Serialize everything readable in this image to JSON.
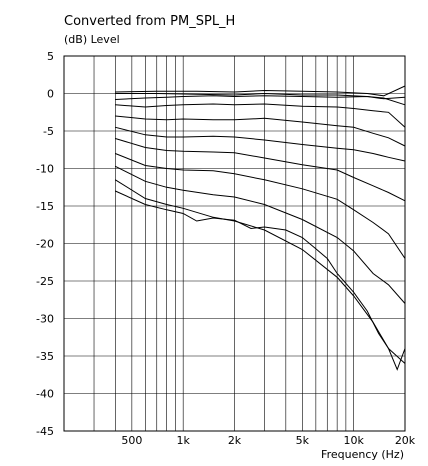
{
  "chart_data": {
    "type": "line",
    "title": "Converted from PM_SPL_H",
    "ylabel": "(dB)  Level",
    "xlabel": "Frequency  (Hz)",
    "x_scale": "log",
    "xlim": [
      200,
      20000
    ],
    "ylim": [
      -45,
      5
    ],
    "grid": true,
    "legend": "none",
    "line_color": "#000000",
    "y_ticks": [
      5,
      0,
      -5,
      -10,
      -15,
      -20,
      -25,
      -30,
      -35,
      -40,
      -45
    ],
    "x_ticks": [
      {
        "value": 500,
        "label": "500"
      },
      {
        "value": 1000,
        "label": "1k"
      },
      {
        "value": 2000,
        "label": "2k"
      },
      {
        "value": 5000,
        "label": "5k"
      },
      {
        "value": 10000,
        "label": "10k"
      },
      {
        "value": 20000,
        "label": "20k"
      }
    ],
    "x_minor": [
      200,
      300,
      400,
      500,
      600,
      700,
      800,
      900,
      1000,
      2000,
      3000,
      4000,
      5000,
      6000,
      7000,
      8000,
      9000,
      10000,
      20000
    ],
    "series": [
      {
        "x": [
          400,
          700,
          1200,
          2000,
          3000,
          5000,
          8000,
          12000,
          15000,
          20000
        ],
        "y": [
          0.2,
          0.3,
          0.3,
          0.2,
          0.4,
          0.3,
          0.2,
          0.0,
          -0.3,
          1.0
        ]
      },
      {
        "x": [
          400,
          700,
          1200,
          2000,
          3000,
          5000,
          8000,
          12000,
          15000,
          20000
        ],
        "y": [
          0.0,
          0.0,
          -0.1,
          -0.2,
          0.0,
          -0.2,
          -0.2,
          -0.4,
          -0.7,
          -0.5
        ]
      },
      {
        "x": [
          400,
          600,
          800,
          1000,
          1500,
          2000,
          3000,
          5000,
          8000,
          12000,
          15000,
          20000
        ],
        "y": [
          -0.8,
          -0.6,
          -0.5,
          -0.4,
          -0.3,
          -0.4,
          -0.3,
          -0.4,
          -0.5,
          -0.4,
          -0.6,
          -1.5
        ]
      },
      {
        "x": [
          400,
          600,
          800,
          1000,
          1500,
          2000,
          3000,
          5000,
          8000,
          10000,
          13000,
          16000,
          20000
        ],
        "y": [
          -1.5,
          -1.8,
          -1.6,
          -1.5,
          -1.4,
          -1.5,
          -1.4,
          -1.7,
          -1.8,
          -2.0,
          -2.3,
          -2.5,
          -4.5
        ]
      },
      {
        "x": [
          400,
          600,
          800,
          1000,
          1500,
          2000,
          3000,
          5000,
          8000,
          10000,
          13000,
          16000,
          20000
        ],
        "y": [
          -3.0,
          -3.4,
          -3.5,
          -3.4,
          -3.5,
          -3.5,
          -3.3,
          -3.8,
          -4.3,
          -4.5,
          -5.3,
          -5.9,
          -7.0
        ]
      },
      {
        "x": [
          400,
          600,
          800,
          1000,
          1500,
          2000,
          3000,
          5000,
          8000,
          10000,
          13000,
          16000,
          20000
        ],
        "y": [
          -4.5,
          -5.5,
          -5.8,
          -5.8,
          -5.7,
          -5.8,
          -6.2,
          -6.8,
          -7.3,
          -7.5,
          -8.0,
          -8.5,
          -9.0
        ]
      },
      {
        "x": [
          400,
          600,
          800,
          1000,
          1500,
          2000,
          3000,
          5000,
          8000,
          10000,
          13000,
          16000,
          20000
        ],
        "y": [
          -6.0,
          -7.2,
          -7.6,
          -7.7,
          -7.8,
          -7.9,
          -8.6,
          -9.5,
          -10.2,
          -11.2,
          -12.3,
          -13.2,
          -14.3
        ]
      },
      {
        "x": [
          400,
          600,
          800,
          1000,
          1500,
          2000,
          3000,
          5000,
          8000,
          10000,
          13000,
          16000,
          20000
        ],
        "y": [
          -8.0,
          -9.6,
          -10.0,
          -10.2,
          -10.3,
          -10.7,
          -11.5,
          -12.7,
          -14.1,
          -15.5,
          -17.2,
          -18.7,
          -22.0
        ]
      },
      {
        "x": [
          400,
          600,
          800,
          1000,
          1500,
          2000,
          3000,
          5000,
          8000,
          10000,
          13000,
          16000,
          20000
        ],
        "y": [
          -9.7,
          -11.7,
          -12.5,
          -12.9,
          -13.5,
          -13.8,
          -14.8,
          -16.8,
          -19.2,
          -21.0,
          -24.0,
          -25.5,
          -28.0
        ]
      },
      {
        "x": [
          400,
          600,
          800,
          1000,
          1500,
          2000,
          3000,
          5000,
          8000,
          10000,
          13000,
          16000,
          20000
        ],
        "y": [
          -11.5,
          -14.0,
          -14.8,
          -15.3,
          -16.5,
          -17.0,
          -18.2,
          -20.8,
          -24.5,
          -27.0,
          -30.5,
          -34.0,
          -36.0
        ]
      },
      {
        "x": [
          400,
          600,
          800,
          1000,
          1200,
          1500,
          2000,
          2500,
          3000,
          4000,
          5000,
          6000,
          7000,
          8000,
          10000,
          12000,
          14000,
          16000,
          18000,
          20000
        ],
        "y": [
          -13.0,
          -14.8,
          -15.5,
          -16.0,
          -17.0,
          -16.6,
          -16.9,
          -18.0,
          -17.8,
          -18.2,
          -19.2,
          -20.7,
          -22.0,
          -24.0,
          -26.5,
          -29.0,
          -32.0,
          -34.0,
          -36.8,
          -34.0
        ]
      }
    ]
  }
}
